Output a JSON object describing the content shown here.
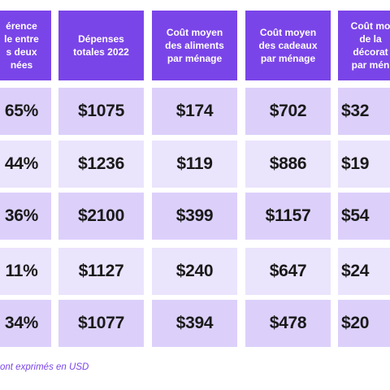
{
  "table": {
    "headers": [
      "érence\nle entre\ns deux\nnées",
      "Dépenses\ntotales 2022",
      "Coût moyen\ndes aliments\npar ménage",
      "Coût moyen\ndes cadeaux\npar ménage",
      "Coût mo\nde la\ndécorat\npar mén"
    ],
    "rows": [
      [
        "65%",
        "$1075",
        "$174",
        "$702",
        "$32"
      ],
      [
        "44%",
        "$1236",
        "$119",
        "$886",
        "$19"
      ],
      [
        "36%",
        "$2100",
        "$399",
        "$1157",
        "$54"
      ],
      [
        "11%",
        "$1127",
        "$240",
        "$647",
        "$24"
      ],
      [
        "34%",
        "$1077",
        "$394",
        "$478",
        "$20"
      ]
    ]
  },
  "footnote": "ont exprimés en USD",
  "colors": {
    "header_bg": "#7a45e8",
    "row_dark": "#dcd0fb",
    "row_light": "#ebe4fd",
    "footnote_text": "#7a45e8"
  }
}
